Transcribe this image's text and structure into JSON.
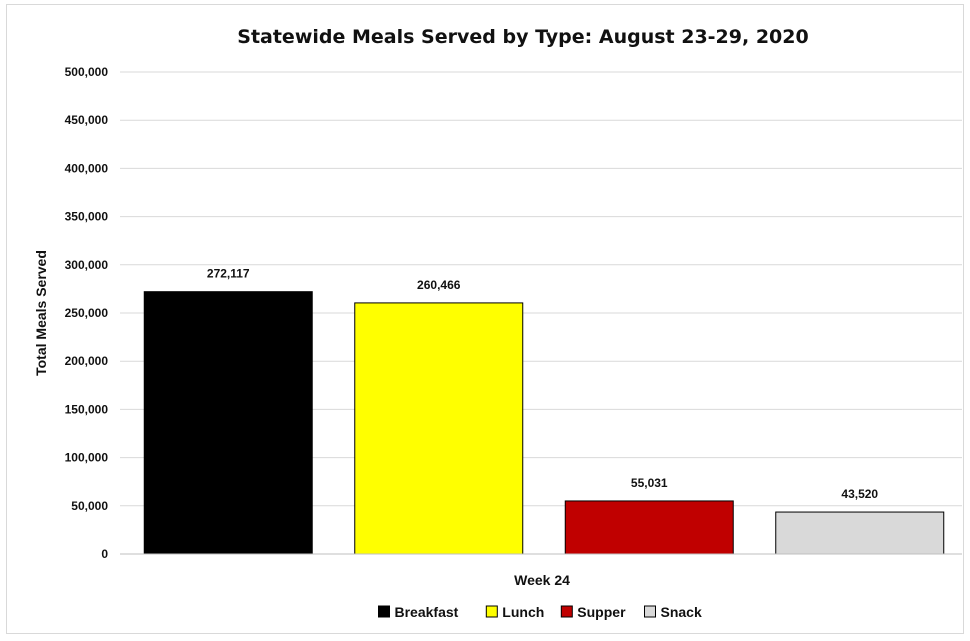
{
  "chart_data": {
    "type": "bar",
    "title": "Statewide Meals Served by Type: August 23-29, 2020",
    "xlabel": "",
    "ylabel": "Total Meals Served",
    "categories": [
      "Week 24"
    ],
    "series": [
      {
        "name": "Breakfast",
        "values": [
          272117
        ],
        "color": "#000000",
        "label": "272,117"
      },
      {
        "name": "Lunch",
        "values": [
          260466
        ],
        "color": "#ffff00",
        "label": "260,466"
      },
      {
        "name": "Supper",
        "values": [
          55031
        ],
        "color": "#c00000",
        "label": "55,031"
      },
      {
        "name": "Snack",
        "values": [
          43520
        ],
        "color": "#d9d9d9",
        "label": "43,520"
      }
    ],
    "ylim": [
      0,
      500000
    ],
    "yticks": [
      0,
      50000,
      100000,
      150000,
      200000,
      250000,
      300000,
      350000,
      400000,
      450000,
      500000
    ],
    "ytick_labels": [
      "0",
      "50,000",
      "100,000",
      "150,000",
      "200,000",
      "250,000",
      "300,000",
      "350,000",
      "400,000",
      "450,000",
      "500,000"
    ],
    "grid": true,
    "legend_position": "bottom"
  }
}
